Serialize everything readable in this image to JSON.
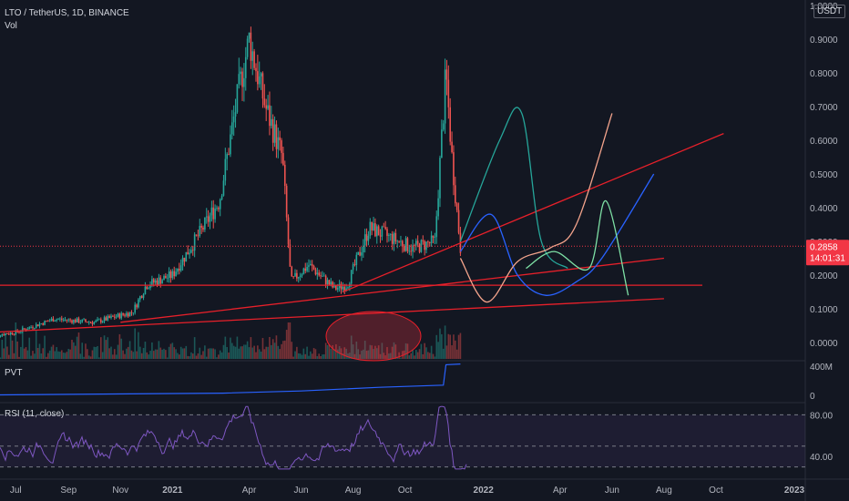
{
  "header": {
    "symbol_line": "LTO / TetherUS, 1D, BINANCE",
    "vol_label": "Vol",
    "currency_badge": "USDT"
  },
  "price_axis": {
    "ticks": [
      "1.0000",
      "0.9000",
      "0.8000",
      "0.7000",
      "0.6000",
      "0.5000",
      "0.4000",
      "0.3000",
      "0.2000",
      "0.1000",
      "0.0000"
    ],
    "current_price": "0.2858",
    "countdown": "14:01:31"
  },
  "pvt": {
    "label": "PVT",
    "ticks": [
      "400M",
      "0"
    ]
  },
  "rsi": {
    "label": "RSI (11, close)",
    "ticks": [
      "80.00",
      "40.00"
    ]
  },
  "time_axis": {
    "ticks": [
      "Jul",
      "Sep",
      "Nov",
      "2021",
      "Apr",
      "Jun",
      "Aug",
      "Oct",
      "2022",
      "Apr",
      "Jun",
      "Aug",
      "Oct",
      "2023"
    ]
  },
  "colors": {
    "background": "#131722",
    "candle_up": "#26a69a",
    "candle_down": "#ef5350",
    "trendline": "#e8202a",
    "rsi_line": "#7e57c2",
    "pvt_line": "#2962ff",
    "price_badge": "#f23645"
  },
  "chart_data": {
    "type": "candlestick",
    "title": "LTO / TetherUS, 1D, BINANCE",
    "ylim": [
      0,
      1
    ],
    "price_path": [
      [
        "2020-06-01",
        0.02
      ],
      [
        "2020-07-01",
        0.03
      ],
      [
        "2020-08-15",
        0.07
      ],
      [
        "2020-10-01",
        0.06
      ],
      [
        "2020-11-15",
        0.09
      ],
      [
        "2020-12-01",
        0.17
      ],
      [
        "2021-01-01",
        0.2
      ],
      [
        "2021-02-01",
        0.32
      ],
      [
        "2021-02-25",
        0.42
      ],
      [
        "2021-03-20",
        0.75
      ],
      [
        "2021-04-01",
        0.9
      ],
      [
        "2021-04-20",
        0.7
      ],
      [
        "2021-05-10",
        0.55
      ],
      [
        "2021-05-20",
        0.18
      ],
      [
        "2021-06-10",
        0.23
      ],
      [
        "2021-07-10",
        0.16
      ],
      [
        "2021-07-25",
        0.17
      ],
      [
        "2021-08-20",
        0.34
      ],
      [
        "2021-09-15",
        0.31
      ],
      [
        "2021-10-10",
        0.28
      ],
      [
        "2021-11-05",
        0.3
      ],
      [
        "2021-11-18",
        0.8
      ],
      [
        "2021-11-25",
        0.55
      ],
      [
        "2021-12-05",
        0.28
      ]
    ],
    "current_price": 0.2858,
    "drawn_paths": [
      {
        "color": "#26a69a",
        "points": [
          [
            "2021-12-05",
            0.3
          ],
          [
            "2022-01-20",
            0.6
          ],
          [
            "2022-02-15",
            0.68
          ],
          [
            "2022-03-10",
            0.3
          ],
          [
            "2022-04-10",
            0.22
          ]
        ]
      },
      {
        "color": "#2962ff",
        "points": [
          [
            "2021-12-05",
            0.27
          ],
          [
            "2022-01-10",
            0.38
          ],
          [
            "2022-02-10",
            0.2
          ],
          [
            "2022-03-15",
            0.14
          ],
          [
            "2022-04-20",
            0.18
          ],
          [
            "2022-05-20",
            0.25
          ],
          [
            "2022-07-20",
            0.5
          ]
        ]
      },
      {
        "color": "#f4a48c",
        "points": [
          [
            "2021-12-05",
            0.25
          ],
          [
            "2022-01-05",
            0.12
          ],
          [
            "2022-02-10",
            0.24
          ],
          [
            "2022-03-20",
            0.28
          ],
          [
            "2022-04-20",
            0.35
          ],
          [
            "2022-06-01",
            0.68
          ]
        ]
      },
      {
        "color": "#7ee0a5",
        "points": [
          [
            "2022-02-20",
            0.22
          ],
          [
            "2022-03-25",
            0.27
          ],
          [
            "2022-05-05",
            0.22
          ],
          [
            "2022-05-25",
            0.42
          ],
          [
            "2022-06-20",
            0.14
          ]
        ]
      }
    ],
    "trendlines": [
      {
        "points": [
          [
            "2020-06-01",
            0.03
          ],
          [
            "2022-08-01",
            0.13
          ]
        ]
      },
      {
        "points": [
          [
            "2020-06-01",
            0.17
          ],
          [
            "2022-09-15",
            0.17
          ]
        ]
      },
      {
        "points": [
          [
            "2020-11-01",
            0.06
          ],
          [
            "2022-08-01",
            0.25
          ]
        ]
      },
      {
        "points": [
          [
            "2021-07-20",
            0.15
          ],
          [
            "2022-10-10",
            0.62
          ]
        ]
      }
    ],
    "pvt_range": [
      0,
      450
    ],
    "pvt_path": [
      [
        "2020-06-01",
        5
      ],
      [
        "2021-03-01",
        30
      ],
      [
        "2021-06-01",
        60
      ],
      [
        "2021-09-01",
        110
      ],
      [
        "2021-11-15",
        140
      ],
      [
        "2021-11-18",
        420
      ],
      [
        "2021-12-05",
        430
      ]
    ],
    "rsi_levels": [
      80,
      50,
      30
    ],
    "rsi_range": [
      20,
      90
    ]
  }
}
